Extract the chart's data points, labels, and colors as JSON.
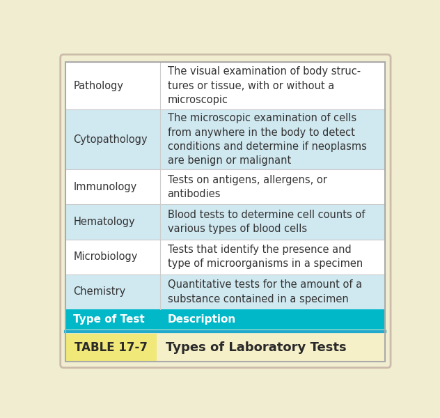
{
  "title_label": "TABLE 17-7",
  "title_text": "Types of Laboratory Tests",
  "header_col1": "Type of Test",
  "header_col2": "Description",
  "rows": [
    {
      "type": "Chemistry",
      "description": "Quantitative tests for the amount of a\nsubstance contained in a specimen"
    },
    {
      "type": "Microbiology",
      "description": "Tests that identify the presence and\ntype of microorganisms in a specimen"
    },
    {
      "type": "Hematology",
      "description": "Blood tests to determine cell counts of\nvarious types of blood cells"
    },
    {
      "type": "Immunology",
      "description": "Tests on antigens, allergens, or\nantibodies"
    },
    {
      "type": "Cytopathology",
      "description": "The microscopic examination of cells\nfrom anywhere in the body to detect\nconditions and determine if neoplasms\nare benign or malignant"
    },
    {
      "type": "Pathology",
      "description": "The visual examination of body struc-\ntures or tissue, with or without a\nmicroscopic"
    }
  ],
  "colors": {
    "title_bg_yellow": "#F0E878",
    "title_bg_cream": "#F5F0C8",
    "header_bg": "#00B8C8",
    "header_text": "#FFFFFF",
    "row_alt_bg": "#D0E8F0",
    "row_plain_bg": "#FFFFFF",
    "row_text": "#333333",
    "outer_bg": "#F0EDD0",
    "outer_border": "#CCCCCC",
    "inner_border": "#BBBBBB",
    "divider": "#CCCCCC",
    "title_border": "#22AACC"
  },
  "figsize": [
    6.32,
    6.0
  ],
  "dpi": 100
}
